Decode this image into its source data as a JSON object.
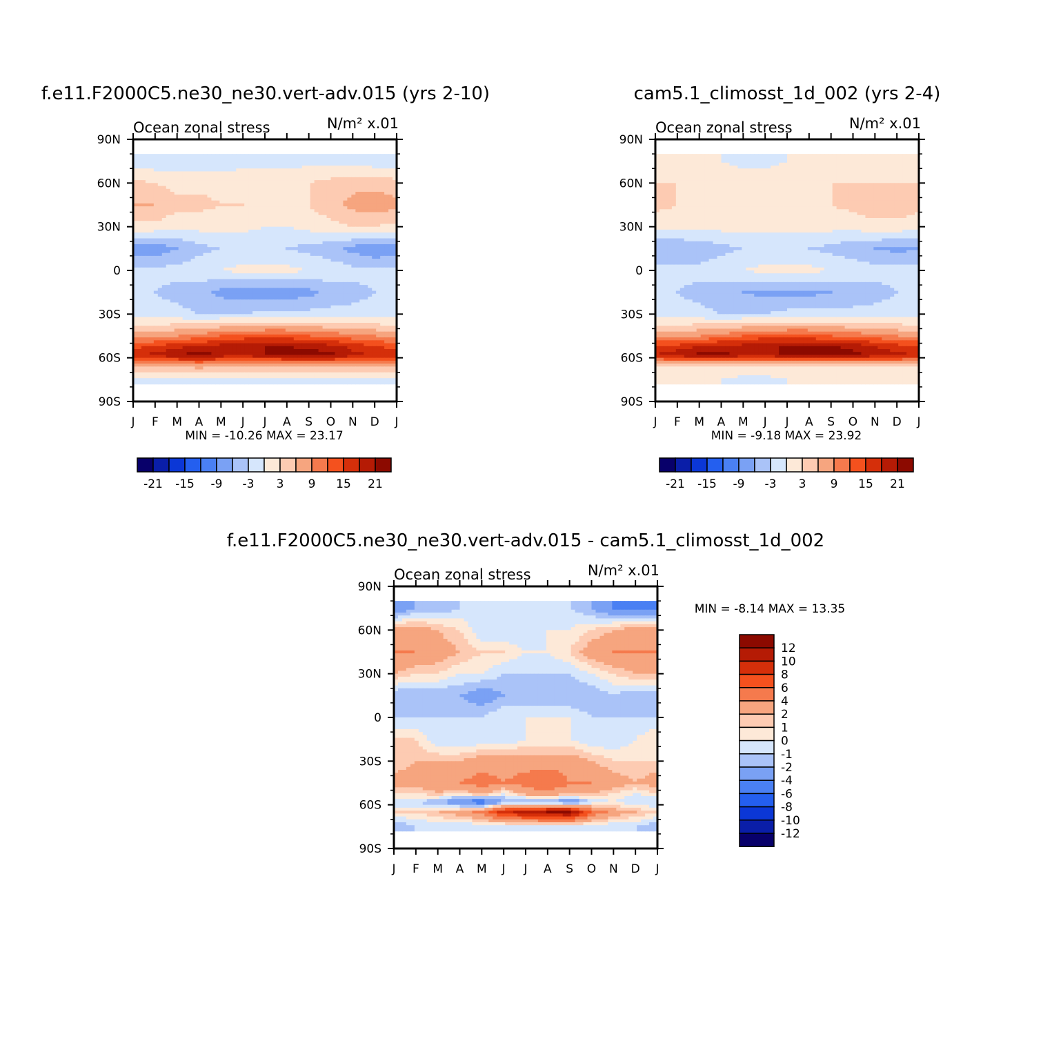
{
  "colors": {
    "diverging": [
      "#08006a",
      "#0a1ea8",
      "#0b37d6",
      "#245fef",
      "#4a80f3",
      "#7aa1f4",
      "#aac3f8",
      "#d6e6fc",
      "#fde9d8",
      "#fdcbb2",
      "#f6a57f",
      "#f57a4d",
      "#f4511e",
      "#d52f0a",
      "#b51b05",
      "#8c0a00"
    ]
  },
  "chart_data": [
    {
      "type": "heatmap",
      "panel": "case",
      "title": "f.e11.F2000C5.ne30_ne30.vert-adv.015 (yrs 2-10)",
      "variable": "Ocean zonal stress",
      "units": "N/m² x.01",
      "x_tick_labels": [
        "J",
        "F",
        "M",
        "A",
        "M",
        "J",
        "J",
        "A",
        "S",
        "O",
        "N",
        "D",
        "J"
      ],
      "y_tick_labels": [
        "90N",
        "60N",
        "30N",
        "0",
        "30S",
        "60S",
        "90S"
      ],
      "latitudes": [
        75,
        60,
        45,
        30,
        15,
        0,
        -15,
        -30,
        -45,
        -52,
        -58,
        -65,
        -75
      ],
      "months": [
        "J",
        "F",
        "M",
        "A",
        "M",
        "J",
        "J",
        "A",
        "S",
        "O",
        "N",
        "D",
        "J"
      ],
      "values": [
        [
          -2,
          -2,
          -2,
          -2,
          -2,
          -1,
          -1,
          -1,
          -1,
          -1,
          -1,
          -2,
          -2
        ],
        [
          4,
          3,
          2,
          2,
          2,
          2,
          2,
          2,
          3,
          4,
          5,
          5,
          4
        ],
        [
          6,
          6,
          4,
          4,
          3,
          3,
          2,
          2,
          3,
          5,
          7,
          8,
          7
        ],
        [
          2,
          2,
          1,
          1,
          1,
          1,
          0,
          0,
          1,
          2,
          3,
          3,
          2
        ],
        [
          -8,
          -8,
          -6,
          -4,
          -3,
          -3,
          -2,
          -3,
          -4,
          -5,
          -7,
          -9,
          -8
        ],
        [
          -2,
          -2,
          -2,
          -1,
          0,
          1,
          1,
          1,
          0,
          -1,
          -2,
          -2,
          -2
        ],
        [
          -3,
          -3,
          -4,
          -5,
          -7,
          -8,
          -8,
          -8,
          -7,
          -5,
          -4,
          -3,
          -3
        ],
        [
          -2,
          -2,
          -2,
          -3,
          -3,
          -3,
          -2,
          -2,
          -2,
          -2,
          -2,
          -2,
          -2
        ],
        [
          8,
          8,
          9,
          10,
          12,
          13,
          13,
          13,
          12,
          11,
          10,
          9,
          8
        ],
        [
          14,
          15,
          17,
          18,
          19,
          20,
          21,
          21,
          20,
          19,
          17,
          15,
          14
        ],
        [
          17,
          19,
          21,
          23,
          20,
          19,
          21,
          22,
          23,
          22,
          19,
          18,
          17
        ],
        [
          6,
          6,
          7,
          8,
          7,
          6,
          6,
          6,
          7,
          7,
          6,
          6,
          6
        ],
        [
          -1,
          -1,
          -1,
          -1,
          -1,
          -1,
          -1,
          -1,
          -1,
          -1,
          -1,
          -1,
          -1
        ]
      ],
      "min_label": "MIN =  -10.26 MAX =   23.17",
      "colorbar_labels": [
        "-21",
        "-15",
        "-9",
        "-3",
        "3",
        "9",
        "15",
        "21"
      ]
    },
    {
      "type": "heatmap",
      "panel": "control",
      "title": "cam5.1_climosst_1d_002 (yrs 2-4)",
      "variable": "Ocean zonal stress",
      "units": "N/m² x.01",
      "x_tick_labels": [
        "J",
        "F",
        "M",
        "A",
        "M",
        "J",
        "J",
        "A",
        "S",
        "O",
        "N",
        "D",
        "J"
      ],
      "y_tick_labels": [
        "90N",
        "60N",
        "30N",
        "0",
        "30S",
        "60S",
        "90S"
      ],
      "latitudes": [
        75,
        60,
        45,
        30,
        15,
        0,
        -15,
        -30,
        -45,
        -52,
        -58,
        -65,
        -75
      ],
      "months": [
        "J",
        "F",
        "M",
        "A",
        "M",
        "J",
        "J",
        "A",
        "S",
        "O",
        "N",
        "D",
        "J"
      ],
      "values": [
        [
          1,
          1,
          1,
          0,
          -1,
          -1,
          0,
          1,
          1,
          1,
          1,
          1,
          1
        ],
        [
          3,
          3,
          2,
          2,
          2,
          2,
          2,
          2,
          3,
          3,
          3,
          3,
          3
        ],
        [
          4,
          3,
          2,
          2,
          2,
          2,
          2,
          2,
          3,
          4,
          5,
          5,
          4
        ],
        [
          1,
          1,
          1,
          1,
          1,
          1,
          1,
          1,
          1,
          1,
          2,
          2,
          1
        ],
        [
          -6,
          -6,
          -5,
          -4,
          -3,
          -3,
          -2,
          -3,
          -4,
          -5,
          -6,
          -7,
          -6
        ],
        [
          -2,
          -2,
          -2,
          -1,
          0,
          1,
          1,
          1,
          0,
          -1,
          -2,
          -2,
          -2
        ],
        [
          -3,
          -3,
          -4,
          -5,
          -6,
          -7,
          -7,
          -7,
          -6,
          -5,
          -4,
          -3,
          -3
        ],
        [
          -2,
          -2,
          -2,
          -3,
          -3,
          -3,
          -2,
          -2,
          -2,
          -2,
          -2,
          -2,
          -2
        ],
        [
          8,
          8,
          9,
          10,
          12,
          13,
          13,
          13,
          12,
          11,
          10,
          9,
          8
        ],
        [
          15,
          16,
          18,
          19,
          19,
          21,
          21,
          21,
          21,
          20,
          18,
          16,
          15
        ],
        [
          18,
          20,
          22,
          22,
          20,
          19,
          22,
          22,
          24,
          22,
          20,
          19,
          18
        ],
        [
          3,
          3,
          3,
          3,
          3,
          3,
          3,
          3,
          3,
          3,
          3,
          3,
          3
        ],
        [
          1,
          1,
          0,
          0,
          -1,
          -1,
          0,
          1,
          1,
          0,
          0,
          0,
          1
        ]
      ],
      "min_label": "MIN =   -9.18 MAX =   23.92",
      "colorbar_labels": [
        "-21",
        "-15",
        "-9",
        "-3",
        "3",
        "9",
        "15",
        "21"
      ]
    },
    {
      "type": "heatmap",
      "panel": "difference",
      "title": "f.e11.F2000C5.ne30_ne30.vert-adv.015 - cam5.1_climosst_1d_002",
      "variable": "Ocean zonal stress",
      "units": "N/m² x.01",
      "x_tick_labels": [
        "J",
        "F",
        "M",
        "A",
        "M",
        "J",
        "J",
        "A",
        "S",
        "O",
        "N",
        "D",
        "J"
      ],
      "y_tick_labels": [
        "90N",
        "60N",
        "30N",
        "0",
        "30S",
        "60S",
        "90S"
      ],
      "latitudes": [
        75,
        60,
        45,
        30,
        15,
        0,
        -15,
        -30,
        -45,
        -52,
        -58,
        -65,
        -75
      ],
      "months": [
        "J",
        "F",
        "M",
        "A",
        "M",
        "J",
        "J",
        "A",
        "S",
        "O",
        "N",
        "D",
        "J"
      ],
      "values": [
        [
          -4,
          -2,
          -2,
          -1,
          0,
          -1,
          0,
          -1,
          -1,
          -2,
          -4,
          -5,
          -4
        ],
        [
          3,
          3,
          2,
          1,
          -1,
          -1,
          -1,
          0,
          0,
          1,
          2,
          3,
          3
        ],
        [
          4,
          4,
          3,
          2,
          1,
          1,
          0,
          0,
          1,
          3,
          4,
          4,
          4
        ],
        [
          2,
          1,
          1,
          0,
          0,
          -1,
          -1,
          -1,
          -1,
          0,
          1,
          2,
          2
        ],
        [
          -2,
          -2,
          -2,
          -2,
          -3,
          -2,
          -2,
          -2,
          -2,
          -2,
          -1,
          -2,
          -2
        ],
        [
          -1,
          -1,
          -1,
          -1,
          -1,
          0,
          0,
          0,
          0,
          -1,
          -1,
          -1,
          -1
        ],
        [
          1,
          1,
          -1,
          -1,
          -1,
          -1,
          0,
          0,
          0,
          -1,
          -1,
          0,
          1
        ],
        [
          1,
          2,
          2,
          2,
          3,
          3,
          3,
          3,
          3,
          2,
          1,
          1,
          1
        ],
        [
          3,
          3,
          3,
          4,
          5,
          4,
          5,
          6,
          4,
          4,
          3,
          2,
          3
        ],
        [
          1,
          1,
          2,
          1,
          3,
          0,
          3,
          3,
          3,
          2,
          1,
          0,
          1
        ],
        [
          -1,
          -1,
          -2,
          -4,
          -6,
          -2,
          -3,
          -2,
          -4,
          -1,
          0,
          -1,
          -1
        ],
        [
          1,
          1,
          2,
          3,
          5,
          9,
          11,
          12,
          13,
          6,
          3,
          2,
          1
        ],
        [
          -2,
          -1,
          -1,
          -1,
          -1,
          -1,
          -1,
          -1,
          -1,
          -1,
          -1,
          -1,
          -2
        ]
      ],
      "min_label": "MIN =    -8.14 MAX =   13.35",
      "colorbar_labels": [
        "12",
        "10",
        "8",
        "6",
        "4",
        "2",
        "1",
        "0",
        "-1",
        "-2",
        "-4",
        "-6",
        "-8",
        "-10",
        "-12"
      ]
    }
  ]
}
